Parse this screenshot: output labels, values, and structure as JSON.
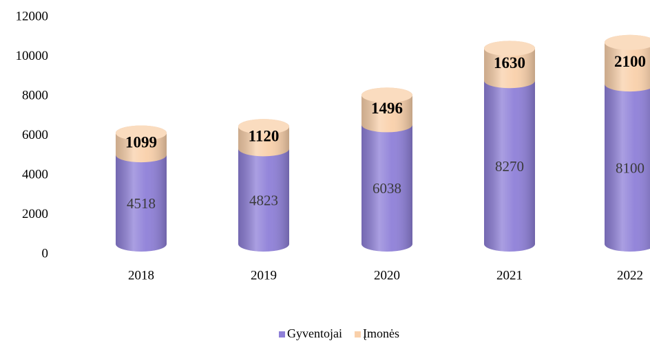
{
  "chart_data": {
    "type": "stacked-cylinder-bar",
    "categories": [
      "2018",
      "2019",
      "2020",
      "2021",
      "2022"
    ],
    "series": [
      {
        "name": "Gyventojai",
        "color": "#8e7fd8",
        "values": [
          4518,
          4823,
          6038,
          8270,
          8100
        ]
      },
      {
        "name": "Įmonės",
        "color": "#f9d0aa",
        "values": [
          1099,
          1120,
          1496,
          1630,
          2100
        ]
      }
    ],
    "ylim": [
      0,
      12000
    ],
    "yticks": [
      0,
      2000,
      4000,
      6000,
      8000,
      10000,
      12000
    ],
    "grid": false,
    "legend": "bottom"
  }
}
